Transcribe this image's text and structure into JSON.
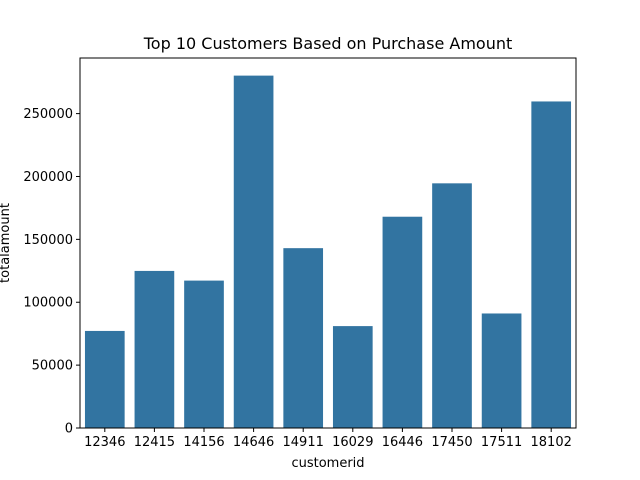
{
  "chart_data": {
    "type": "bar",
    "title": "Top 10 Customers Based on Purchase Amount",
    "xlabel": "customerid",
    "ylabel": "totalamount",
    "categories": [
      "12346",
      "12415",
      "14156",
      "14646",
      "14911",
      "16029",
      "16446",
      "17450",
      "17511",
      "18102"
    ],
    "values": [
      77184,
      124900,
      117210,
      280206,
      143000,
      81025,
      168000,
      194551,
      91062,
      259657
    ],
    "ylim": [
      0,
      294216
    ],
    "yticks": [
      0,
      50000,
      100000,
      150000,
      200000,
      250000
    ],
    "ytick_labels": [
      "0",
      "50000",
      "100000",
      "150000",
      "200000",
      "250000"
    ],
    "bar_color": "#3274a1",
    "grid": false,
    "legend": "none"
  }
}
